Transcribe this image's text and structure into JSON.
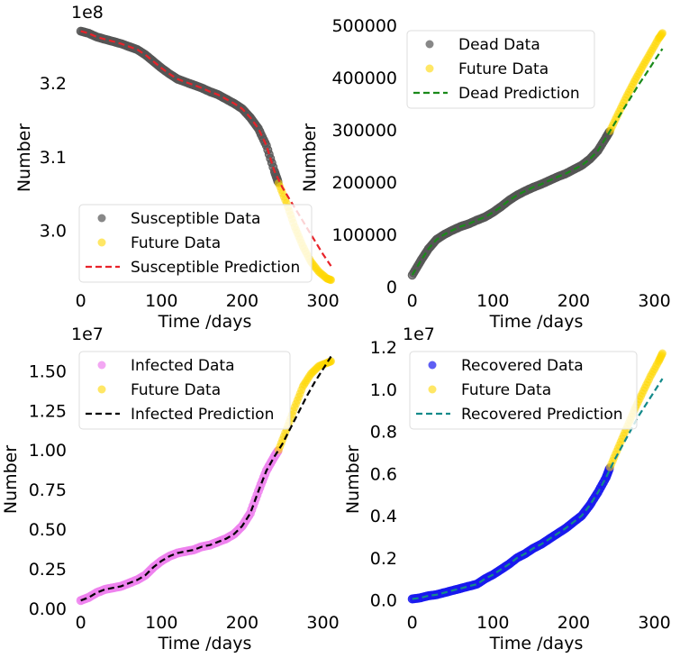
{
  "chart_data": [
    {
      "type": "scatter",
      "xlabel": "Time /days",
      "ylabel": "Number",
      "offset_label": "1e8",
      "xlim": [
        -3,
        315
      ],
      "ylim": [
        2.924,
        3.278
      ],
      "xticks": [
        {
          "v": 0,
          "label": "0"
        },
        {
          "v": 100,
          "label": "100"
        },
        {
          "v": 200,
          "label": "200"
        },
        {
          "v": 300,
          "label": "300"
        }
      ],
      "yticks": [
        {
          "v": 3.0,
          "label": "3.0"
        },
        {
          "v": 3.1,
          "label": "3.1"
        },
        {
          "v": 3.2,
          "label": "3.2"
        }
      ],
      "legend": "lower-left",
      "series": [
        {
          "name": "Susceptible Data",
          "kind": "points",
          "color": "#555555",
          "x": [
            0,
            10,
            20,
            30,
            40,
            50,
            60,
            70,
            80,
            90,
            100,
            110,
            120,
            130,
            140,
            150,
            160,
            170,
            180,
            190,
            200,
            210,
            220,
            230,
            240,
            245
          ],
          "y": [
            3.27,
            3.267,
            3.262,
            3.259,
            3.256,
            3.253,
            3.249,
            3.245,
            3.238,
            3.229,
            3.22,
            3.212,
            3.205,
            3.201,
            3.197,
            3.193,
            3.188,
            3.184,
            3.178,
            3.172,
            3.165,
            3.153,
            3.138,
            3.115,
            3.08,
            3.064
          ]
        },
        {
          "name": "Future Data",
          "kind": "future",
          "color": "#FFD700",
          "x": [
            245,
            255,
            265,
            275,
            285,
            295,
            305,
            310
          ],
          "y": [
            3.064,
            3.037,
            3.005,
            2.979,
            2.958,
            2.944,
            2.935,
            2.933
          ]
        },
        {
          "name": "Susceptible Prediction",
          "kind": "dashed",
          "color": "#e8232a",
          "x": [
            0,
            10,
            20,
            30,
            40,
            50,
            60,
            70,
            80,
            90,
            100,
            110,
            120,
            130,
            140,
            150,
            160,
            170,
            180,
            190,
            200,
            210,
            220,
            230,
            240,
            250,
            260,
            270,
            280,
            290,
            300,
            310
          ],
          "y": [
            3.27,
            3.267,
            3.262,
            3.259,
            3.256,
            3.253,
            3.249,
            3.245,
            3.238,
            3.229,
            3.22,
            3.212,
            3.205,
            3.201,
            3.197,
            3.193,
            3.188,
            3.184,
            3.178,
            3.172,
            3.165,
            3.153,
            3.138,
            3.115,
            3.08,
            3.058,
            3.04,
            3.022,
            3.004,
            2.986,
            2.968,
            2.952
          ]
        }
      ]
    },
    {
      "type": "scatter",
      "xlabel": "Time /days",
      "ylabel": "Number",
      "offset_label": "",
      "xlim": [
        -3,
        315
      ],
      "ylim": [
        0,
        500000
      ],
      "xticks": [
        {
          "v": 0,
          "label": "0"
        },
        {
          "v": 100,
          "label": "100"
        },
        {
          "v": 200,
          "label": "200"
        },
        {
          "v": 300,
          "label": "300"
        }
      ],
      "yticks": [
        {
          "v": 0,
          "label": "0"
        },
        {
          "v": 100000,
          "label": "100000"
        },
        {
          "v": 200000,
          "label": "200000"
        },
        {
          "v": 300000,
          "label": "300000"
        },
        {
          "v": 400000,
          "label": "400000"
        },
        {
          "v": 500000,
          "label": "500000"
        }
      ],
      "legend": "top-left",
      "series": [
        {
          "name": "Dead Data",
          "kind": "points",
          "color": "#555555",
          "x": [
            0,
            10,
            20,
            30,
            40,
            50,
            60,
            70,
            80,
            90,
            100,
            110,
            120,
            130,
            140,
            150,
            160,
            170,
            180,
            190,
            200,
            210,
            220,
            230,
            240,
            245
          ],
          "y": [
            22000,
            48000,
            72000,
            90000,
            100000,
            108000,
            115000,
            120000,
            127000,
            133000,
            142000,
            153000,
            165000,
            175000,
            183000,
            190000,
            196000,
            203000,
            210000,
            216000,
            224000,
            232000,
            244000,
            260000,
            285000,
            298000
          ]
        },
        {
          "name": "Future Data",
          "kind": "future",
          "color": "#FFD700",
          "x": [
            245,
            255,
            265,
            275,
            285,
            295,
            305,
            310
          ],
          "y": [
            298000,
            330000,
            362000,
            392000,
            420000,
            447000,
            474000,
            485000
          ]
        },
        {
          "name": "Dead Prediction",
          "kind": "dashed",
          "color": "#1a8a1a",
          "x": [
            0,
            10,
            20,
            30,
            40,
            50,
            60,
            70,
            80,
            90,
            100,
            110,
            120,
            130,
            140,
            150,
            160,
            170,
            180,
            190,
            200,
            210,
            220,
            230,
            240,
            250,
            260,
            270,
            280,
            290,
            300,
            310
          ],
          "y": [
            22000,
            48000,
            72000,
            90000,
            100000,
            108000,
            115000,
            120000,
            127000,
            133000,
            142000,
            153000,
            165000,
            175000,
            183000,
            190000,
            196000,
            203000,
            210000,
            216000,
            224000,
            232000,
            244000,
            260000,
            285000,
            310000,
            335000,
            360000,
            385000,
            408000,
            432000,
            455000
          ]
        }
      ]
    },
    {
      "type": "scatter",
      "xlabel": "Time /days",
      "ylabel": "Number",
      "offset_label": "1e7",
      "xlim": [
        -3,
        315
      ],
      "ylim": [
        0,
        1.65
      ],
      "xticks": [
        {
          "v": 0,
          "label": "0"
        },
        {
          "v": 100,
          "label": "100"
        },
        {
          "v": 200,
          "label": "200"
        },
        {
          "v": 300,
          "label": "300"
        }
      ],
      "yticks": [
        {
          "v": 0,
          "label": "0.00"
        },
        {
          "v": 0.25,
          "label": "0.25"
        },
        {
          "v": 0.5,
          "label": "0.50"
        },
        {
          "v": 0.75,
          "label": "0.75"
        },
        {
          "v": 1.0,
          "label": "1.00"
        },
        {
          "v": 1.25,
          "label": "1.25"
        },
        {
          "v": 1.5,
          "label": "1.50"
        }
      ],
      "legend": "top-left",
      "series": [
        {
          "name": "Infected Data",
          "kind": "points",
          "color": "#ee82ee",
          "x": [
            0,
            10,
            20,
            30,
            40,
            50,
            60,
            70,
            80,
            90,
            100,
            110,
            120,
            130,
            140,
            150,
            160,
            170,
            180,
            190,
            200,
            210,
            220,
            230,
            240,
            245
          ],
          "y": [
            0.05,
            0.07,
            0.1,
            0.12,
            0.13,
            0.14,
            0.16,
            0.18,
            0.21,
            0.26,
            0.3,
            0.33,
            0.35,
            0.36,
            0.37,
            0.39,
            0.4,
            0.42,
            0.44,
            0.47,
            0.52,
            0.6,
            0.74,
            0.87,
            0.96,
            1.0
          ]
        },
        {
          "name": "Future Data",
          "kind": "future",
          "color": "#FFD700",
          "x": [
            245,
            255,
            265,
            275,
            285,
            295,
            305,
            310
          ],
          "y": [
            1.0,
            1.13,
            1.27,
            1.4,
            1.48,
            1.53,
            1.55,
            1.56
          ]
        },
        {
          "name": "Infected Prediction",
          "kind": "dashed",
          "color": "#000000",
          "x": [
            0,
            10,
            20,
            30,
            40,
            50,
            60,
            70,
            80,
            90,
            100,
            110,
            120,
            130,
            140,
            150,
            160,
            170,
            180,
            190,
            200,
            210,
            220,
            230,
            240,
            250,
            260,
            270,
            280,
            290,
            300,
            310
          ],
          "y": [
            0.05,
            0.07,
            0.1,
            0.12,
            0.13,
            0.14,
            0.16,
            0.18,
            0.21,
            0.26,
            0.3,
            0.33,
            0.35,
            0.36,
            0.37,
            0.39,
            0.4,
            0.42,
            0.44,
            0.47,
            0.52,
            0.6,
            0.74,
            0.87,
            0.96,
            1.04,
            1.14,
            1.24,
            1.34,
            1.43,
            1.51,
            1.59
          ]
        }
      ]
    },
    {
      "type": "scatter",
      "xlabel": "Time /days",
      "ylabel": "Number",
      "offset_label": "1e7",
      "xlim": [
        -3,
        315
      ],
      "ylim": [
        -0.04,
        1.2
      ],
      "xticks": [
        {
          "v": 0,
          "label": "0"
        },
        {
          "v": 100,
          "label": "100"
        },
        {
          "v": 200,
          "label": "200"
        },
        {
          "v": 300,
          "label": "300"
        }
      ],
      "yticks": [
        {
          "v": 0,
          "label": "0.0"
        },
        {
          "v": 0.2,
          "label": "0.2"
        },
        {
          "v": 0.4,
          "label": "0.4"
        },
        {
          "v": 0.6,
          "label": "0.6"
        },
        {
          "v": 0.8,
          "label": "0.8"
        },
        {
          "v": 1.0,
          "label": "1.0"
        },
        {
          "v": 1.2,
          "label": "1.2"
        }
      ],
      "legend": "top-left",
      "series": [
        {
          "name": "Recovered Data",
          "kind": "points",
          "color": "#1a1aee",
          "x": [
            0,
            10,
            20,
            30,
            40,
            50,
            60,
            70,
            80,
            90,
            100,
            110,
            120,
            130,
            140,
            150,
            160,
            170,
            180,
            190,
            200,
            210,
            220,
            230,
            240,
            245
          ],
          "y": [
            0.005,
            0.01,
            0.02,
            0.025,
            0.035,
            0.045,
            0.055,
            0.065,
            0.075,
            0.1,
            0.12,
            0.145,
            0.17,
            0.2,
            0.22,
            0.245,
            0.265,
            0.29,
            0.315,
            0.34,
            0.37,
            0.4,
            0.45,
            0.51,
            0.58,
            0.63
          ]
        },
        {
          "name": "Future Data",
          "kind": "future",
          "color": "#FFD700",
          "x": [
            245,
            255,
            265,
            275,
            285,
            295,
            305,
            310
          ],
          "y": [
            0.63,
            0.72,
            0.81,
            0.9,
            0.98,
            1.06,
            1.13,
            1.17
          ]
        },
        {
          "name": "Recovered Prediction",
          "kind": "dashed",
          "color": "#138a8a",
          "x": [
            0,
            10,
            20,
            30,
            40,
            50,
            60,
            70,
            80,
            90,
            100,
            110,
            120,
            130,
            140,
            150,
            160,
            170,
            180,
            190,
            200,
            210,
            220,
            230,
            240,
            250,
            260,
            270,
            280,
            290,
            300,
            310
          ],
          "y": [
            0.005,
            0.01,
            0.02,
            0.025,
            0.035,
            0.045,
            0.055,
            0.065,
            0.075,
            0.1,
            0.12,
            0.145,
            0.17,
            0.2,
            0.22,
            0.245,
            0.265,
            0.29,
            0.315,
            0.34,
            0.37,
            0.4,
            0.45,
            0.51,
            0.58,
            0.66,
            0.73,
            0.8,
            0.87,
            0.93,
            0.99,
            1.05
          ]
        }
      ]
    }
  ]
}
